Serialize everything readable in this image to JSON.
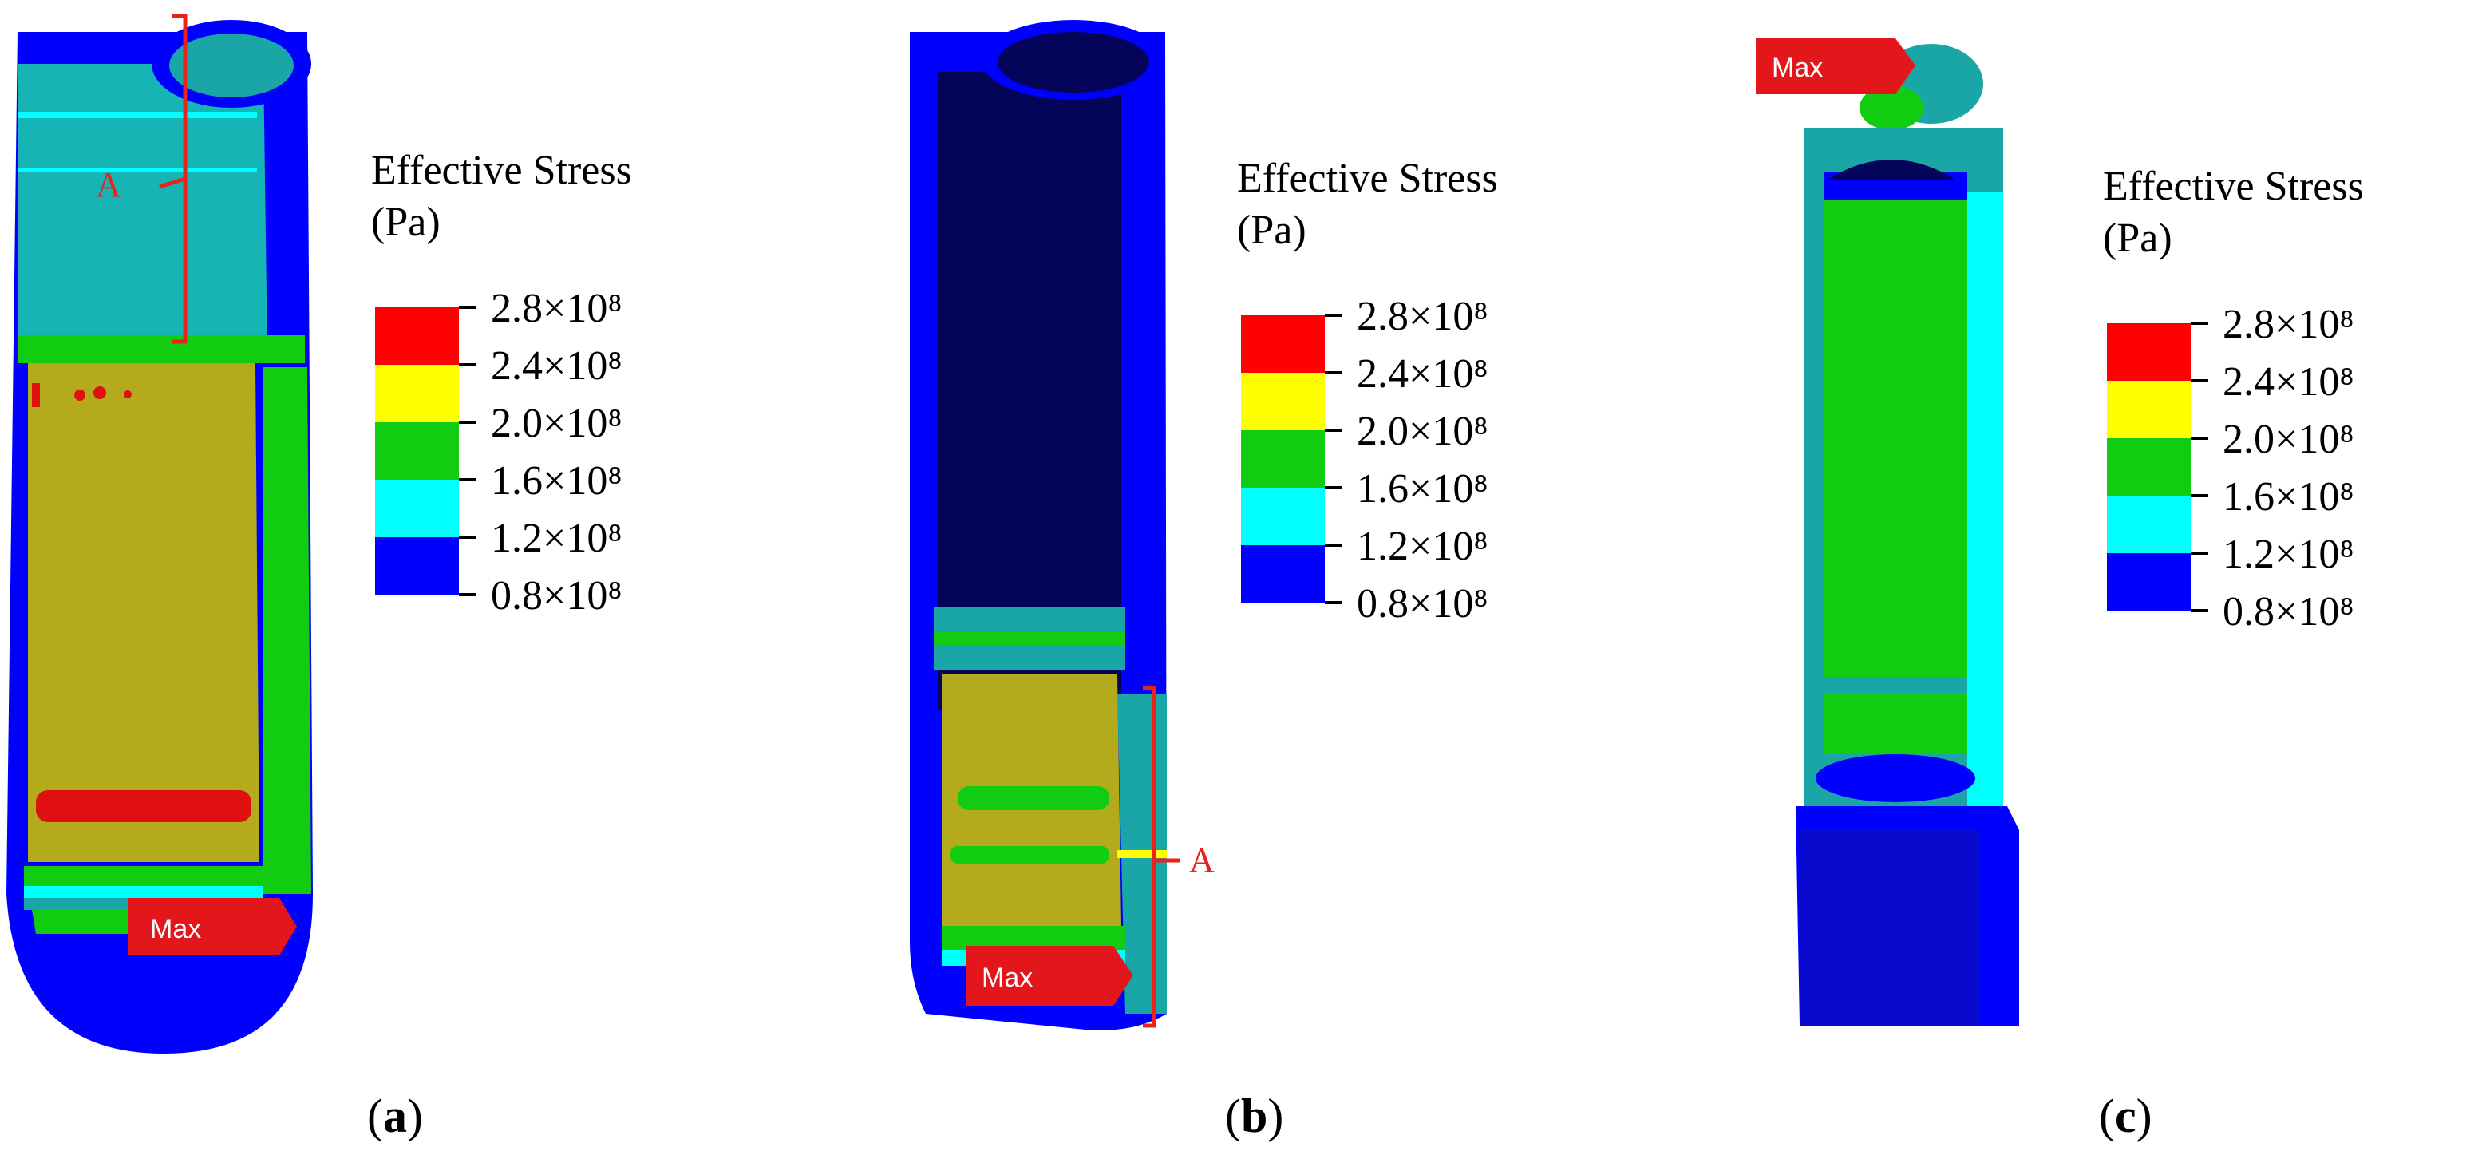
{
  "colors": {
    "red": "#ff0000",
    "yellow": "#ffff00",
    "green": "#11cc11",
    "cyan": "#00ffff",
    "blue": "#0000ff",
    "dark_blue": "#04045a",
    "teal": "#1aa6a6",
    "olive": "#b3aa1c",
    "annotation_red": "#e8231d"
  },
  "legend": {
    "title_line1": "Effective Stress",
    "title_line2": "(Pa)",
    "levels": [
      {
        "label": "2.8×10⁸",
        "value": 280000000.0
      },
      {
        "label": "2.4×10⁸",
        "value": 240000000.0
      },
      {
        "label": "2.0×10⁸",
        "value": 200000000.0
      },
      {
        "label": "1.6×10⁸",
        "value": 160000000.0
      },
      {
        "label": "1.2×10⁸",
        "value": 120000000.0
      },
      {
        "label": "0.8×10⁸",
        "value": 80000000.0
      }
    ],
    "bands": [
      "red",
      "yellow",
      "green",
      "cyan",
      "blue"
    ]
  },
  "panels": [
    {
      "caption_open": "(",
      "caption_letter": "a",
      "caption_close": ")",
      "max_label": "Max",
      "region_label": "A"
    },
    {
      "caption_open": "(",
      "caption_letter": "b",
      "caption_close": ")",
      "max_label": "Max",
      "region_label": "A"
    },
    {
      "caption_open": "(",
      "caption_letter": "c",
      "caption_close": ")",
      "max_label": "Max"
    }
  ]
}
